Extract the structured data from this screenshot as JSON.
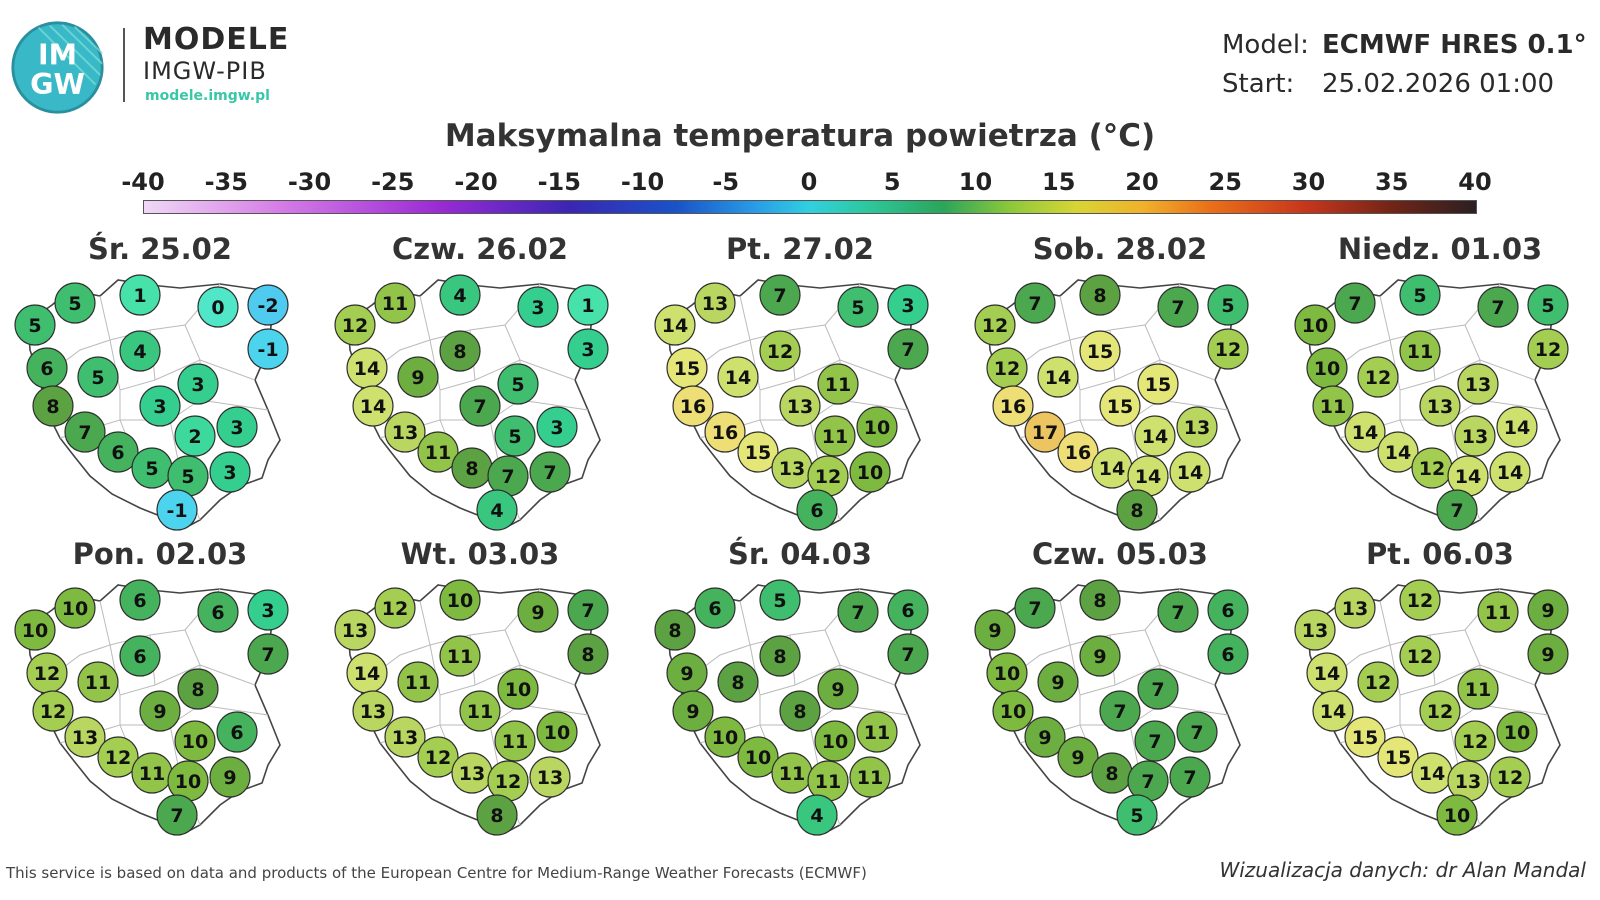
{
  "header": {
    "logo_text": "IMGW",
    "brand_name": "MODELE",
    "brand_sub": "IMGW-PIB",
    "brand_url": "modele.imgw.pl",
    "model_label": "Model:",
    "model_value": "ECMWF HRES 0.1°",
    "start_label": "Start:",
    "start_value": "25.02.2026 01:00"
  },
  "title": "Maksymalna temperatura powietrza (°C)",
  "scale": {
    "ticks": [
      "-40",
      "-35",
      "-30",
      "-25",
      "-20",
      "-15",
      "-10",
      "-5",
      "0",
      "5",
      "10",
      "15",
      "20",
      "25",
      "30",
      "35",
      "40"
    ],
    "min": -40,
    "max": 40
  },
  "days": [
    {
      "label": "Śr. 25.02",
      "values": [
        5,
        1,
        0,
        -2,
        5,
        4,
        -1,
        6,
        5,
        3,
        8,
        3,
        3,
        7,
        2,
        6,
        5,
        5,
        3,
        -1
      ]
    },
    {
      "label": "Czw. 26.02",
      "values": [
        11,
        4,
        3,
        1,
        12,
        8,
        3,
        14,
        9,
        5,
        14,
        7,
        3,
        13,
        5,
        11,
        8,
        7,
        7,
        4
      ]
    },
    {
      "label": "Pt. 27.02",
      "values": [
        13,
        7,
        5,
        3,
        14,
        12,
        7,
        15,
        14,
        11,
        16,
        13,
        10,
        16,
        11,
        15,
        13,
        12,
        10,
        6
      ]
    },
    {
      "label": "Sob. 28.02",
      "values": [
        7,
        8,
        7,
        5,
        12,
        15,
        12,
        12,
        14,
        15,
        16,
        15,
        13,
        17,
        14,
        16,
        14,
        14,
        14,
        8
      ]
    },
    {
      "label": "Niedz. 01.03",
      "values": [
        7,
        5,
        7,
        5,
        10,
        11,
        12,
        10,
        12,
        13,
        11,
        13,
        14,
        14,
        13,
        14,
        12,
        14,
        14,
        7
      ]
    },
    {
      "label": "Pon. 02.03",
      "values": [
        10,
        6,
        6,
        3,
        10,
        6,
        7,
        12,
        11,
        8,
        12,
        9,
        6,
        13,
        10,
        12,
        11,
        10,
        9,
        7
      ]
    },
    {
      "label": "Wt. 03.03",
      "values": [
        12,
        10,
        9,
        7,
        13,
        11,
        8,
        14,
        11,
        10,
        13,
        11,
        10,
        13,
        11,
        12,
        13,
        12,
        13,
        8
      ]
    },
    {
      "label": "Śr. 04.03",
      "values": [
        6,
        5,
        7,
        6,
        8,
        8,
        7,
        9,
        8,
        9,
        9,
        8,
        11,
        10,
        10,
        10,
        11,
        11,
        11,
        4
      ]
    },
    {
      "label": "Czw. 05.03",
      "values": [
        7,
        8,
        7,
        6,
        9,
        9,
        6,
        10,
        9,
        7,
        10,
        7,
        7,
        9,
        7,
        9,
        8,
        7,
        7,
        5
      ]
    },
    {
      "label": "Pt. 06.03",
      "values": [
        13,
        12,
        11,
        9,
        13,
        12,
        9,
        14,
        12,
        11,
        14,
        12,
        10,
        15,
        12,
        15,
        14,
        13,
        12,
        10
      ]
    }
  ],
  "footer": {
    "source": "This service is based on data and products of the European Centre for Medium-Range Weather Forecasts (ECMWF)",
    "credit": "Wizualizacja danych: dr Alan Mandal"
  }
}
